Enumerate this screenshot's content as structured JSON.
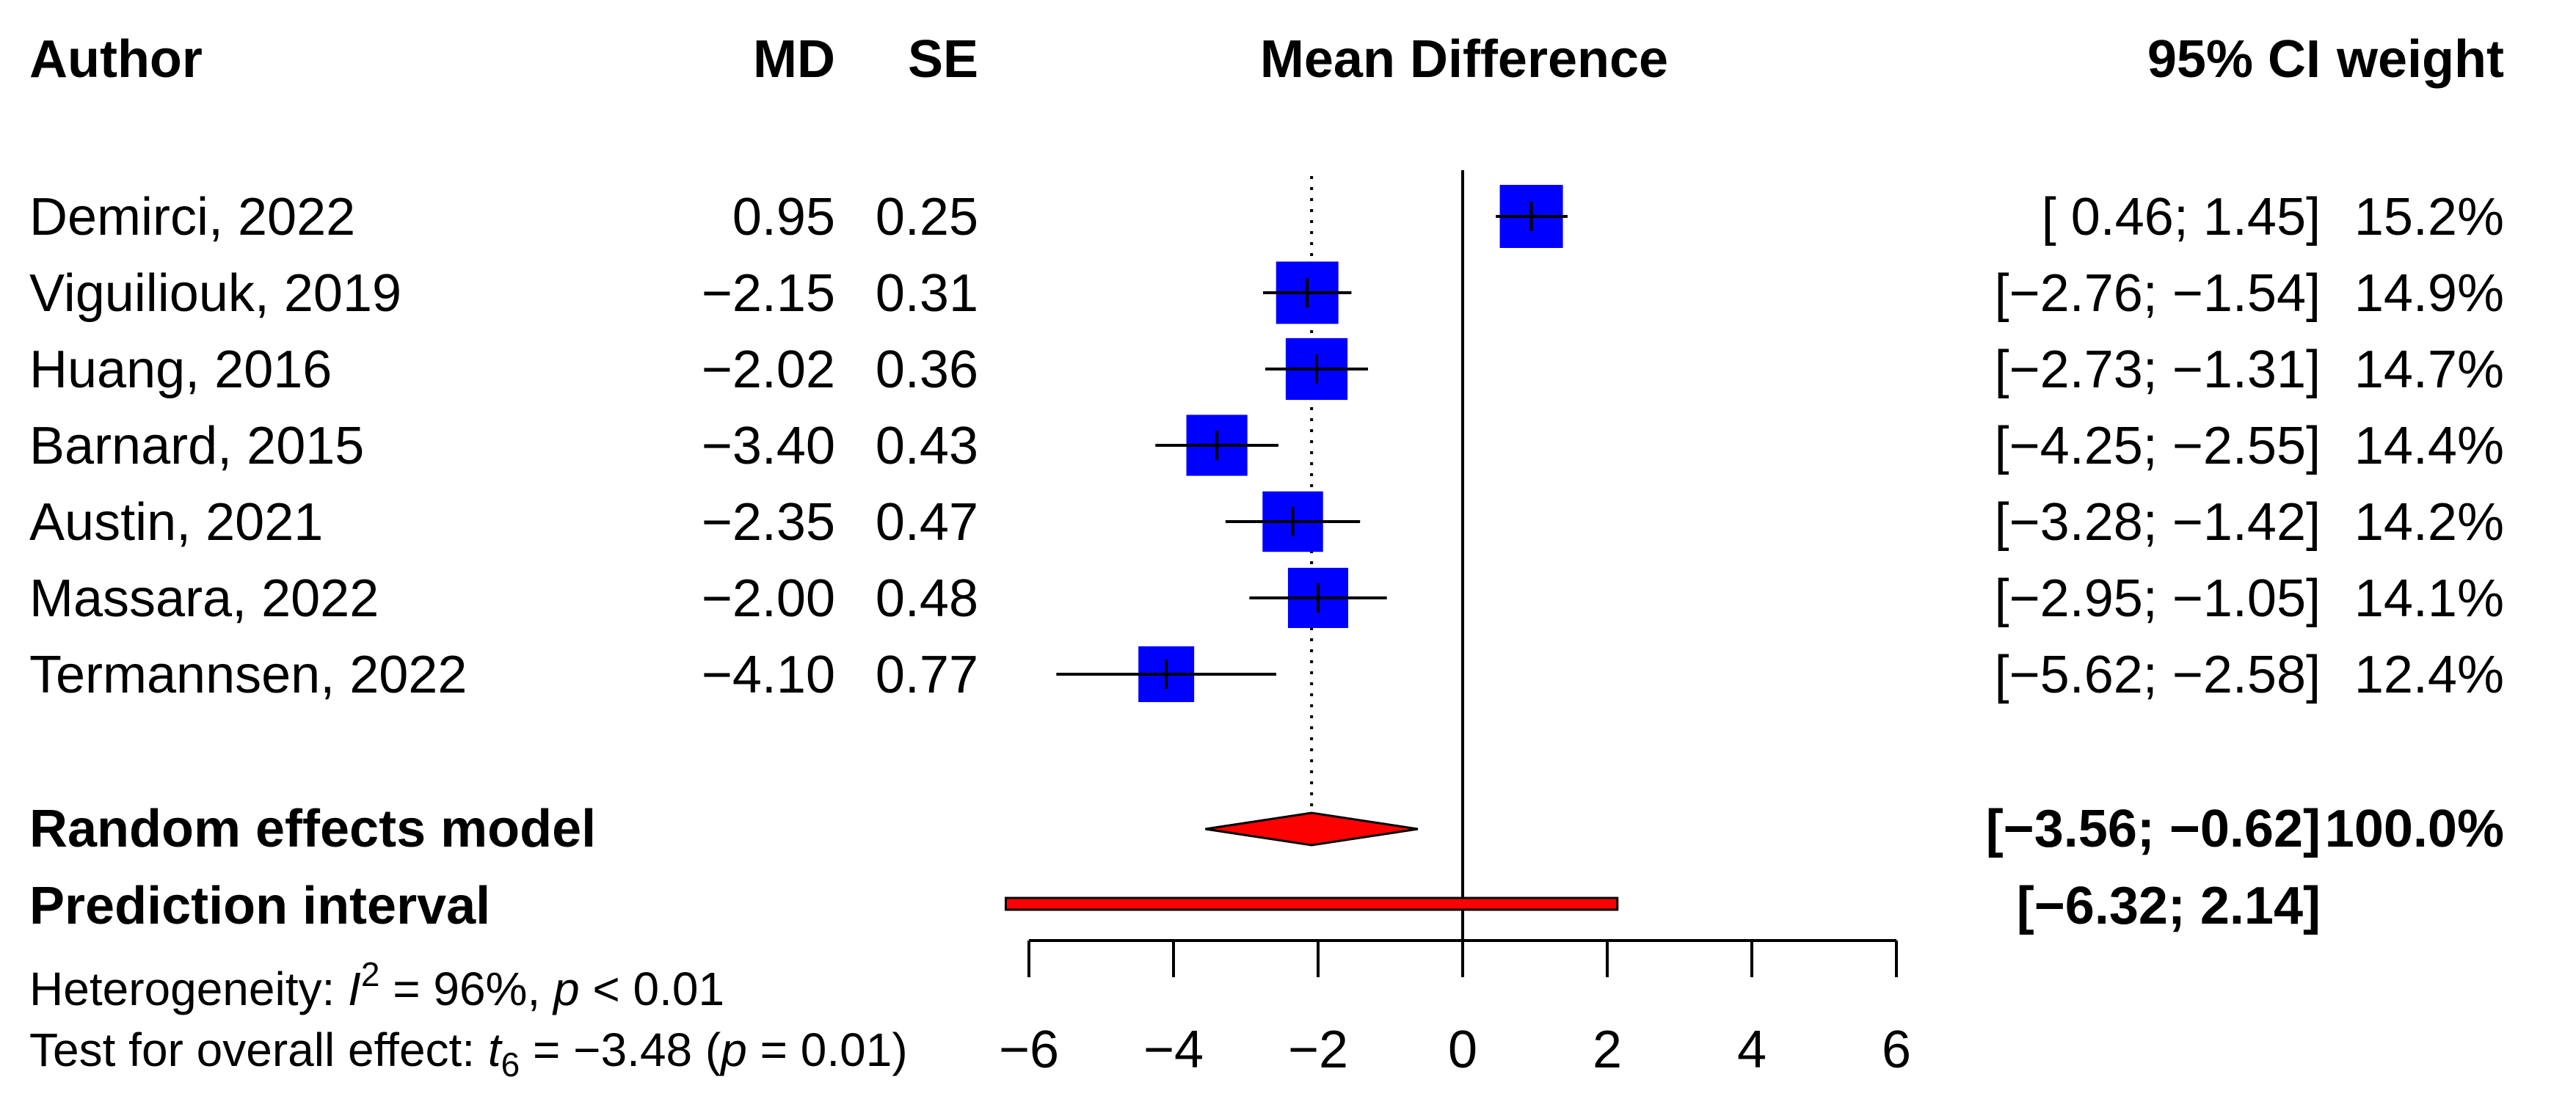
{
  "chart_data": {
    "type": "forest",
    "title": "Mean Difference",
    "headers": {
      "author": "Author",
      "md": "MD",
      "se": "SE",
      "effect": "Mean Difference",
      "ci": "95% CI",
      "weight": "weight"
    },
    "studies": [
      {
        "author": "Demirci, 2022",
        "md": 0.95,
        "md_text": "0.95",
        "se_text": "0.25",
        "lower": 0.46,
        "upper": 1.45,
        "ci_text": "[ 0.46;  1.45]",
        "weight": 15.2,
        "weight_text": "15.2%"
      },
      {
        "author": "Viguiliouk, 2019",
        "md": -2.15,
        "md_text": "−2.15",
        "se_text": "0.31",
        "lower": -2.76,
        "upper": -1.54,
        "ci_text": "[−2.76; −1.54]",
        "weight": 14.9,
        "weight_text": "14.9%"
      },
      {
        "author": "Huang, 2016",
        "md": -2.02,
        "md_text": "−2.02",
        "se_text": "0.36",
        "lower": -2.73,
        "upper": -1.31,
        "ci_text": "[−2.73; −1.31]",
        "weight": 14.7,
        "weight_text": "14.7%"
      },
      {
        "author": "Barnard, 2015",
        "md": -3.4,
        "md_text": "−3.40",
        "se_text": "0.43",
        "lower": -4.25,
        "upper": -2.55,
        "ci_text": "[−4.25; −2.55]",
        "weight": 14.4,
        "weight_text": "14.4%"
      },
      {
        "author": "Austin, 2021",
        "md": -2.35,
        "md_text": "−2.35",
        "se_text": "0.47",
        "lower": -3.28,
        "upper": -1.42,
        "ci_text": "[−3.28; −1.42]",
        "weight": 14.2,
        "weight_text": "14.2%"
      },
      {
        "author": "Massara, 2022",
        "md": -2.0,
        "md_text": "−2.00",
        "se_text": "0.48",
        "lower": -2.95,
        "upper": -1.05,
        "ci_text": "[−2.95; −1.05]",
        "weight": 14.1,
        "weight_text": "14.1%"
      },
      {
        "author": "Termannsen, 2022",
        "md": -4.1,
        "md_text": "−4.10",
        "se_text": "0.77",
        "lower": -5.62,
        "upper": -2.58,
        "ci_text": "[−5.62; −2.58]",
        "weight": 12.4,
        "weight_text": "12.4%"
      }
    ],
    "random_effects": {
      "label": "Random effects model",
      "estimate": -2.09,
      "lower": -3.56,
      "upper": -0.62,
      "ci_text": "[−3.56; −0.62]",
      "weight_text": "100.0%"
    },
    "prediction_interval": {
      "label": "Prediction interval",
      "lower": -6.32,
      "upper": 2.14,
      "ci_text": "[−6.32;  2.14]"
    },
    "heterogeneity": {
      "prefix": "Heterogeneity: ",
      "stat": "I",
      "sup": "2",
      "mid": " = 96%, ",
      "p": "p",
      "tail": " < 0.01"
    },
    "overall_effect": {
      "prefix": "Test for overall effect: ",
      "stat": "t",
      "sub": "6",
      "mid": " = −3.48 (",
      "p": "p",
      "tail": " = 0.01)"
    },
    "xlim": [
      -6,
      6
    ],
    "ticks": [
      -6,
      -4,
      -2,
      0,
      2,
      4,
      6
    ],
    "tick_labels": [
      "−6",
      "−4",
      "−2",
      "0",
      "2",
      "4",
      "6"
    ],
    "null_value": 0,
    "colors": {
      "square": "#0000ff",
      "diamond": "#ff0000",
      "line": "#000000"
    }
  }
}
